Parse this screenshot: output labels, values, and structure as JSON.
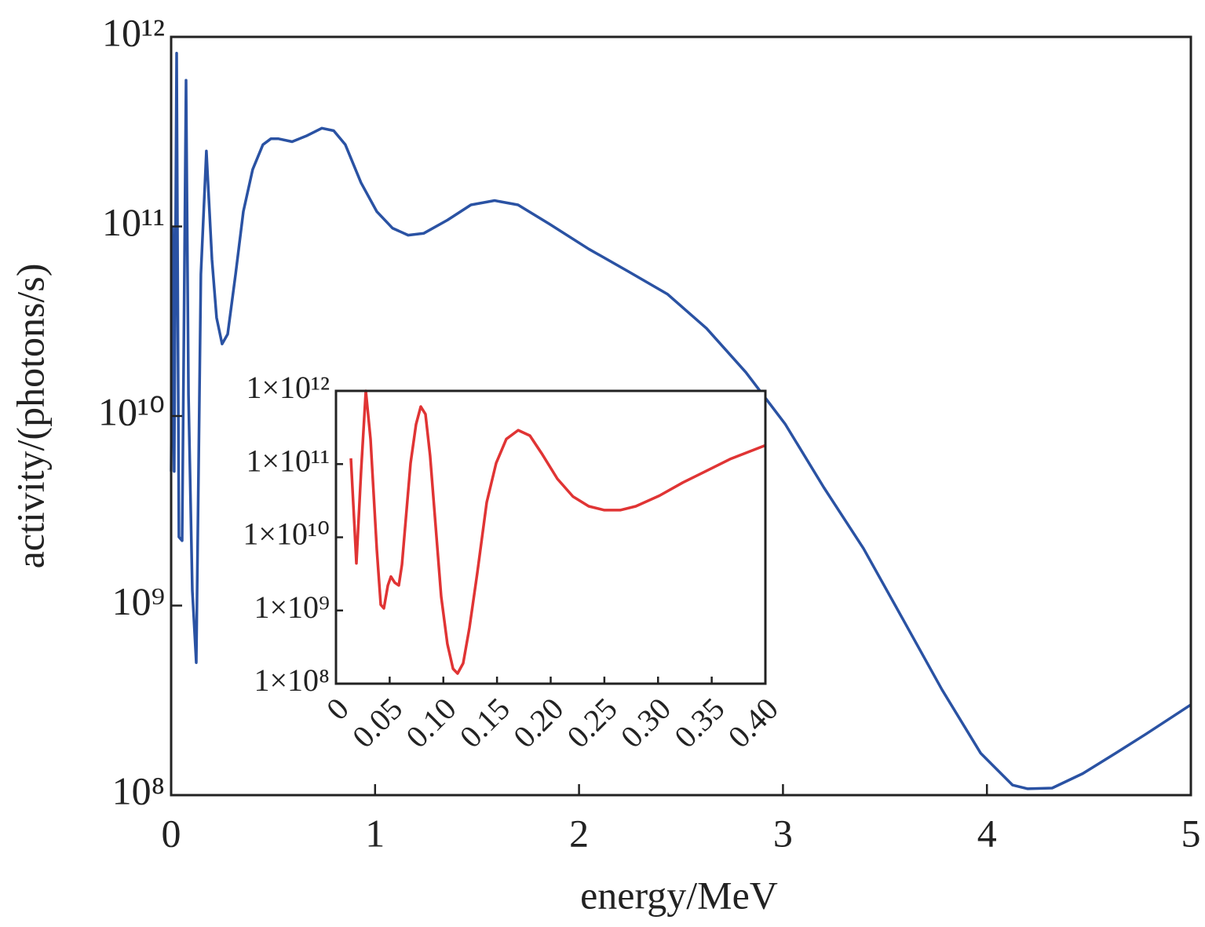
{
  "chart_data": [
    {
      "type": "line",
      "x_label": "energy/MeV",
      "y_label": "activity/(photons/s)",
      "log_y": true,
      "xlim": [
        0,
        5
      ],
      "xticks": [
        0,
        1,
        2,
        3,
        4,
        5
      ],
      "ylim": [
        100000000,
        1000000000000
      ],
      "yticks": [
        {
          "value": 100000000,
          "label": "10⁸"
        },
        {
          "value": 1000000000,
          "label": "10⁹"
        },
        {
          "value": 10000000000,
          "label": "10¹⁰"
        },
        {
          "value": 100000000000,
          "label": "10¹¹"
        },
        {
          "value": 1000000000000,
          "label": "10¹²"
        }
      ],
      "series": [
        {
          "color": "#2a52a3",
          "x": [
            0,
            0.008,
            0.015,
            0.027,
            0.038,
            0.054,
            0.073,
            0.085,
            0.104,
            0.123,
            0.146,
            0.173,
            0.2,
            0.223,
            0.25,
            0.277,
            0.316,
            0.354,
            0.4,
            0.45,
            0.489,
            0.527,
            0.593,
            0.662,
            0.739,
            0.797,
            0.854,
            0.931,
            1.008,
            1.085,
            1.162,
            1.239,
            1.355,
            1.47,
            1.586,
            1.701,
            1.855,
            2.048,
            2.24,
            2.433,
            2.625,
            2.818,
            3.01,
            3.2,
            3.395,
            3.59,
            3.78,
            3.97,
            4.126,
            4.2,
            4.32,
            4.47,
            4.63,
            4.78,
            5
          ],
          "values": [
            5100000000,
            98000000000,
            5100000000,
            820000000000,
            2300000000,
            2200000000,
            590000000000,
            13000000000,
            1200000000,
            500000000,
            56000000000,
            250000000000,
            67000000000,
            33000000000,
            24000000000,
            27000000000,
            56000000000,
            120000000000,
            200000000000,
            270000000000,
            290000000000,
            290000000000,
            280000000000,
            300000000000,
            330000000000,
            320000000000,
            270000000000,
            170000000000,
            120000000000,
            98000000000,
            90000000000,
            92000000000,
            108000000000,
            130000000000,
            137000000000,
            130000000000,
            103000000000,
            76000000000,
            58000000000,
            44000000000,
            29000000000,
            17000000000,
            9100000000,
            4200000000,
            2000000000,
            840000000,
            360000000,
            166000000,
            113000000,
            108000000,
            109000000,
            130000000,
            166000000,
            210000000,
            300000000
          ]
        }
      ]
    },
    {
      "type": "line",
      "log_y": true,
      "xlim": [
        0,
        0.4
      ],
      "xticks": [
        0,
        0.05,
        {
          "value": 0.1,
          "label": "0.10"
        },
        0.15,
        {
          "value": 0.2,
          "label": "0.20"
        },
        0.25,
        {
          "value": 0.3,
          "label": "0.30"
        },
        0.35,
        {
          "value": 0.4,
          "label": "0.40"
        }
      ],
      "ylim": [
        100000000,
        1000000000000
      ],
      "yticks": [
        {
          "value": 100000000,
          "label": "1×10⁸"
        },
        {
          "value": 1000000000,
          "label": "1×10⁹"
        },
        {
          "value": 10000000000,
          "label": "1×10¹⁰"
        },
        {
          "value": 100000000000,
          "label": "1×10¹¹"
        },
        {
          "value": 1000000000000,
          "label": "1×10¹²"
        }
      ],
      "series": [
        {
          "color": "#e03434",
          "x": [
            0.0139,
            0.019,
            0.0234,
            0.0278,
            0.0322,
            0.038,
            0.0417,
            0.0446,
            0.0483,
            0.0512,
            0.0548,
            0.0585,
            0.0614,
            0.0651,
            0.0695,
            0.0746,
            0.079,
            0.0834,
            0.0877,
            0.0929,
            0.098,
            0.1038,
            0.109,
            0.1133,
            0.1185,
            0.1243,
            0.1316,
            0.1404,
            0.1492,
            0.1587,
            0.1697,
            0.1806,
            0.1916,
            0.2062,
            0.2208,
            0.2355,
            0.25,
            0.2647,
            0.2793,
            0.3013,
            0.3232,
            0.3452,
            0.3671,
            0.4
          ],
          "values": [
            120000000000,
            4400000000,
            81000000000,
            1000000000000,
            220000000000,
            6800000000,
            1200000000,
            1070000000,
            2200000000,
            2900000000,
            2400000000,
            2200000000,
            4200000000,
            18000000000,
            103000000000,
            350000000000,
            610000000000,
            480000000000,
            130000000000,
            14000000000,
            1550000000,
            350000000,
            160000000,
            138000000,
            190000000,
            580000000,
            3250000000,
            30000000000,
            103000000000,
            220000000000,
            290000000000,
            245000000000,
            140000000000,
            63000000000,
            36000000000,
            26500000000,
            23500000000,
            23500000000,
            26500000000,
            37000000000,
            56000000000,
            81000000000,
            117000000000,
            180000000000
          ]
        }
      ]
    }
  ]
}
